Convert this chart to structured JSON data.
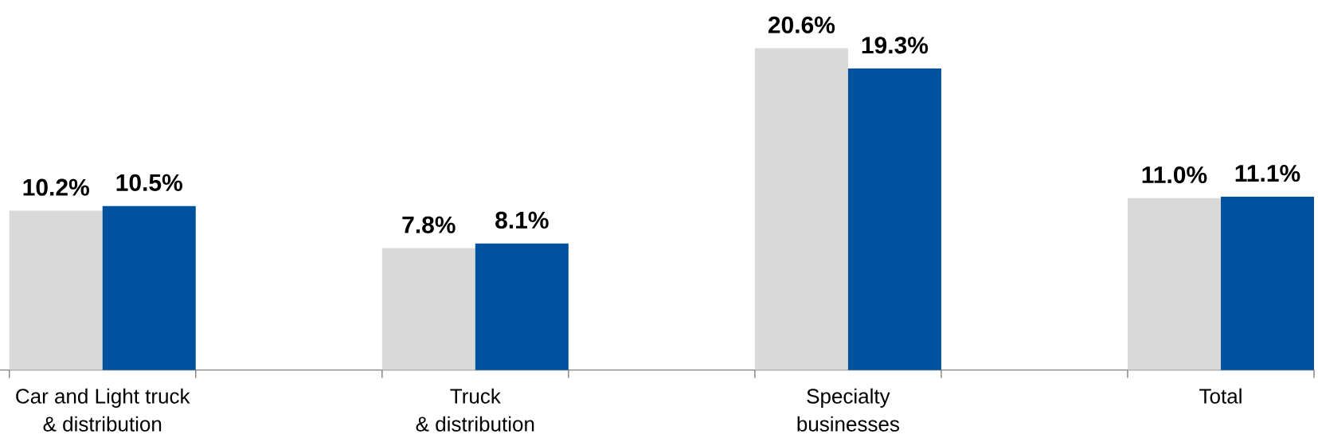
{
  "chart_data": {
    "type": "bar",
    "categories": [
      "Car and Light truck\n& distribution",
      "Truck\n& distribution",
      "Specialty\nbusinesses",
      "Total"
    ],
    "series": [
      {
        "color": "#d9d9d9",
        "values": [
          10.2,
          7.8,
          20.6,
          11.0
        ],
        "value_labels": [
          "10.2%",
          "7.8%",
          "20.6%",
          "11.0%"
        ]
      },
      {
        "color": "#00519e",
        "values": [
          10.5,
          8.1,
          19.3,
          11.1
        ],
        "value_labels": [
          "10.5%",
          "8.1%",
          "19.3%",
          "11.1%"
        ]
      }
    ]
  }
}
